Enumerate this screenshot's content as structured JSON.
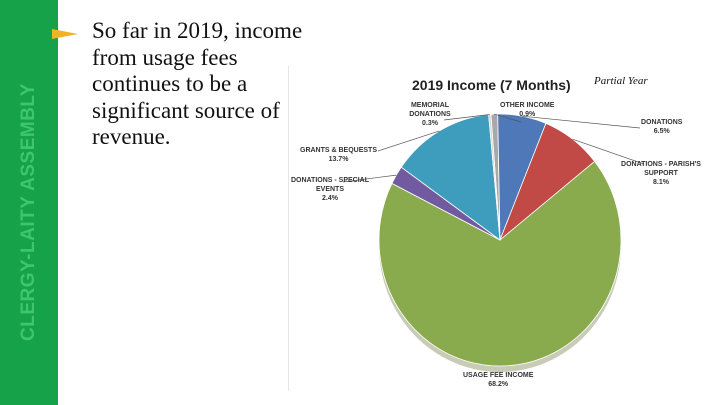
{
  "sidebar": {
    "label": "CLERGY-LAITY ASSEMBLY"
  },
  "slide": {
    "bullet_text": "So far in 2019, income from usage fees continues to be a significant source of revenue."
  },
  "colors": {
    "sidebar_green": "#16a249",
    "bullet_arrow": "#f0b323"
  },
  "chart_data": {
    "type": "pie",
    "title": "2019 Income (7 Months)",
    "note": "Partial Year",
    "slices": [
      {
        "name": "OTHER INCOME",
        "value": 0.9,
        "value_label": "0.9%",
        "color": "#a8a8a8"
      },
      {
        "name": "DONATIONS",
        "value": 6.5,
        "value_label": "6.5%",
        "color": "#4e78b7"
      },
      {
        "name": "DONATIONS - PARISH'S SUPPORT",
        "value": 8.1,
        "value_label": "8.1%",
        "color": "#c14a47"
      },
      {
        "name": "USAGE FEE INCOME",
        "value": 68.2,
        "value_label": "68.2%",
        "color": "#8aaa4e"
      },
      {
        "name": "DONATIONS - SPECIAL EVENTS",
        "value": 2.4,
        "value_label": "2.4%",
        "color": "#725aa0"
      },
      {
        "name": "GRANTS & BEQUESTS",
        "value": 13.7,
        "value_label": "13.7%",
        "color": "#3e9cbc"
      },
      {
        "name": "MEMORIAL DONATIONS",
        "value": 0.3,
        "value_label": "0.3%",
        "color": "#d2d2d2"
      }
    ],
    "legend": "none"
  }
}
